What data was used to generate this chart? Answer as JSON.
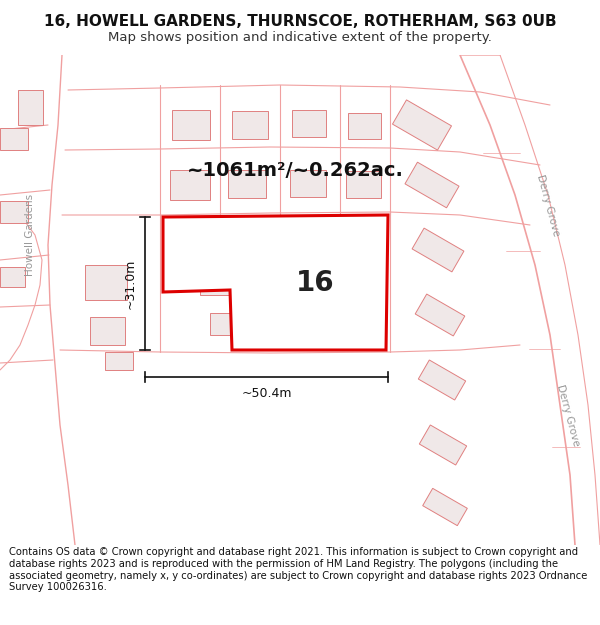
{
  "title": "16, HOWELL GARDENS, THURNSCOE, ROTHERHAM, S63 0UB",
  "subtitle": "Map shows position and indicative extent of the property.",
  "footer": "Contains OS data © Crown copyright and database right 2021. This information is subject to Crown copyright and database rights 2023 and is reproduced with the permission of HM Land Registry. The polygons (including the associated geometry, namely x, y co-ordinates) are subject to Crown copyright and database rights 2023 Ordnance Survey 100026316.",
  "bg_color": "#ffffff",
  "map_bg": "#fdf5f5",
  "road_color": "#f0a0a0",
  "building_fill": "#f0e8e8",
  "building_edge": "#e08080",
  "highlight_color": "#dd0000",
  "highlight_fill": "#ffffff",
  "dim_color": "#111111",
  "street_text_color": "#999999",
  "area_text": "~1061m²/~0.262ac.",
  "label_16": "16",
  "dim_width": "~50.4m",
  "dim_height": "~31.0m",
  "title_fontsize": 11,
  "subtitle_fontsize": 9.5,
  "footer_fontsize": 7.2,
  "area_fontsize": 14,
  "label_fontsize": 20,
  "dim_fontsize": 9,
  "street_fontsize": 7.5
}
